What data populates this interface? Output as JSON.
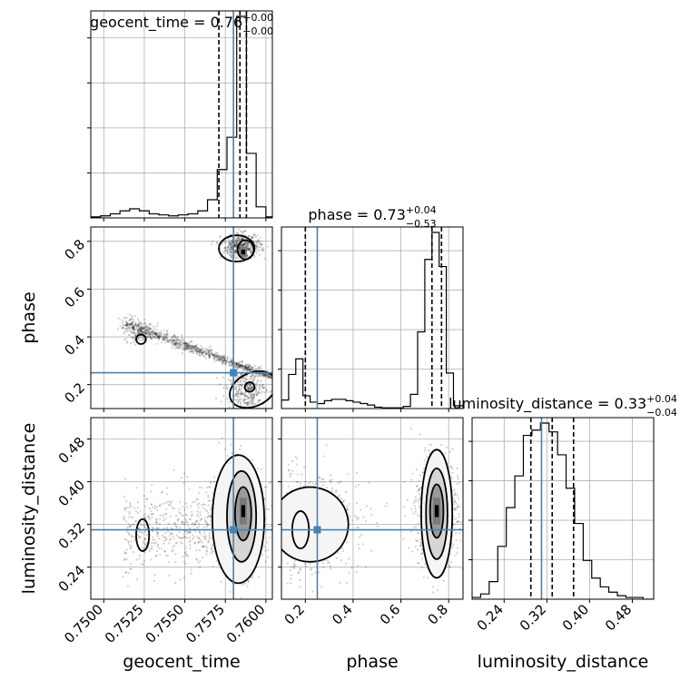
{
  "chart_data": {
    "type": "corner",
    "parameters": [
      "geocent_time",
      "phase",
      "luminosity_distance"
    ],
    "truths": {
      "geocent_time": 0.758,
      "phase": 0.25,
      "luminosity_distance": 0.31
    },
    "truth_color": "#4682b4",
    "hist_color": "#000000",
    "grid": true,
    "axis_ranges": {
      "geocent_time": [
        0.7492,
        0.7604
      ],
      "phase": [
        0.1,
        0.86
      ],
      "luminosity_distance": [
        0.18,
        0.52
      ]
    },
    "ticks": {
      "geocent_time": {
        "values": [
          0.75,
          0.7525,
          0.755,
          0.7575,
          0.76
        ],
        "labels": [
          "0.7500",
          "0.7525",
          "0.7550",
          "0.7575",
          "0.7600"
        ]
      },
      "phase": {
        "values": [
          0.2,
          0.4,
          0.6,
          0.8
        ],
        "labels": [
          "0.2",
          "0.4",
          "0.6",
          "0.8"
        ]
      },
      "luminosity_distance": {
        "values": [
          0.24,
          0.32,
          0.4,
          0.48
        ],
        "labels": [
          "0.24",
          "0.32",
          "0.40",
          "0.48"
        ]
      }
    },
    "titles": {
      "geocent_time": {
        "name": "geocent_time",
        "value": "0.76",
        "plus": "+0.00",
        "minus": "−0.00"
      },
      "phase": {
        "name": "phase",
        "value": "0.73",
        "plus": "+0.04",
        "minus": "−0.53"
      },
      "luminosity_distance": {
        "name": "luminosity_distance",
        "value": "0.33",
        "plus": "+0.04",
        "minus": "−0.04"
      }
    },
    "quantiles": {
      "geocent_time": [
        0.7571,
        0.7584,
        0.7588
      ],
      "phase": [
        0.2,
        0.73,
        0.77
      ],
      "luminosity_distance": [
        0.29,
        0.33,
        0.37
      ]
    },
    "histograms": {
      "geocent_time": {
        "edges": [
          0.7492,
          0.7498,
          0.7504,
          0.751,
          0.7516,
          0.7522,
          0.7528,
          0.7534,
          0.754,
          0.7546,
          0.7552,
          0.7558,
          0.7564,
          0.757,
          0.7576,
          0.7582,
          0.7588,
          0.7594,
          0.76,
          0.7604
        ],
        "counts": [
          1,
          2,
          4,
          7,
          9,
          7,
          4,
          3,
          2,
          3,
          4,
          7,
          18,
          48,
          80,
          200,
          64,
          11,
          1
        ]
      },
      "phase": {
        "edges": [
          0.1,
          0.13,
          0.16,
          0.19,
          0.22,
          0.25,
          0.28,
          0.31,
          0.34,
          0.37,
          0.4,
          0.43,
          0.46,
          0.49,
          0.52,
          0.55,
          0.58,
          0.61,
          0.64,
          0.67,
          0.7,
          0.73,
          0.76,
          0.79,
          0.82,
          0.86
        ],
        "counts": [
          12,
          48,
          70,
          18,
          9,
          7,
          11,
          13,
          13,
          11,
          9,
          7,
          5,
          2,
          1,
          1,
          1,
          3,
          20,
          108,
          210,
          248,
          200,
          50,
          4
        ]
      },
      "luminosity_distance": {
        "edges": [
          0.18,
          0.196,
          0.212,
          0.228,
          0.244,
          0.26,
          0.276,
          0.292,
          0.308,
          0.324,
          0.34,
          0.356,
          0.372,
          0.388,
          0.404,
          0.42,
          0.436,
          0.452,
          0.468,
          0.484,
          0.5,
          0.52
        ],
        "counts": [
          1,
          3,
          10,
          30,
          52,
          70,
          93,
          96,
          100,
          95,
          82,
          63,
          43,
          22,
          12,
          7,
          4,
          2,
          1,
          1,
          0
        ]
      }
    }
  }
}
